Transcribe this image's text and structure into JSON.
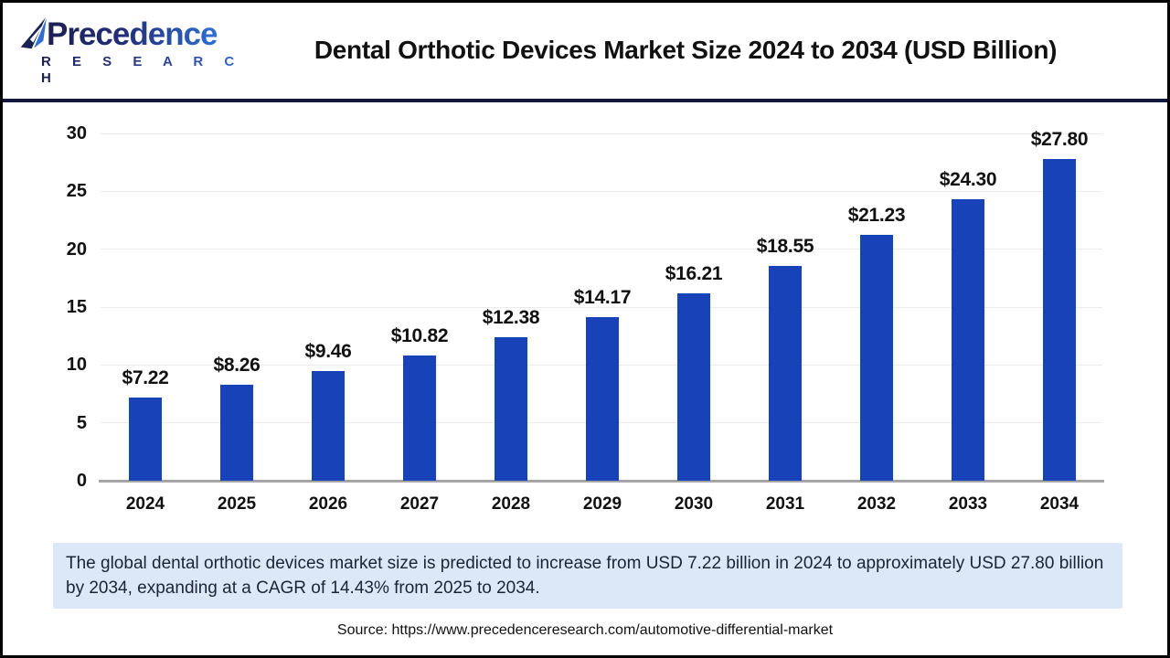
{
  "header": {
    "logo": {
      "line1": "Precedence",
      "line2": "R E S E A R C H"
    },
    "title": "Dental Orthotic Devices Market Size 2024 to 2034 (USD Billion)"
  },
  "chart_data": {
    "type": "bar",
    "title": "Dental Orthotic Devices Market Size 2024 to 2034 (USD Billion)",
    "categories": [
      "2024",
      "2025",
      "2026",
      "2027",
      "2028",
      "2029",
      "2030",
      "2031",
      "2032",
      "2033",
      "2034"
    ],
    "values": [
      7.22,
      8.26,
      9.46,
      10.82,
      12.38,
      14.17,
      16.21,
      18.55,
      21.23,
      24.3,
      27.8
    ],
    "value_labels": [
      "$7.22",
      "$8.26",
      "$9.46",
      "$10.82",
      "$12.38",
      "$14.17",
      "$16.21",
      "$18.55",
      "$21.23",
      "$24.30",
      "$27.80"
    ],
    "xlabel": "",
    "ylabel": "",
    "ylim": [
      0,
      30
    ],
    "yticks": [
      0,
      5,
      10,
      15,
      20,
      25,
      30
    ],
    "grid": true,
    "legend_position": "none",
    "bar_color": "#1843b8"
  },
  "footer": {
    "summary": "The global dental orthotic devices market size is predicted to increase from USD 7.22 billion in 2024 to approximately USD 27.80 billion by 2034, expanding at a CAGR of 14.43% from 2025 to 2034.",
    "source": "Source: https://www.precedenceresearch.com/automotive-differential-market"
  },
  "colors": {
    "bar": "#1843b8",
    "header_separator": "#14183e",
    "gridline": "#ebebeb",
    "axis_line": "#a6a6a6",
    "summary_background": "#dce8f7",
    "logo_navy": "#1b2150",
    "logo_blue": "#2f6fd2"
  }
}
